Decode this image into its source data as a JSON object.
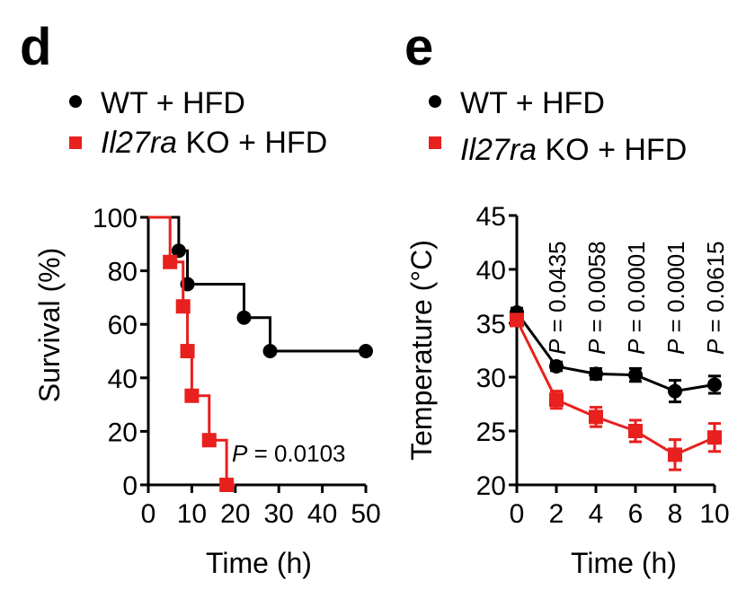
{
  "colors": {
    "wt": "#000000",
    "ko": "#e8201e"
  },
  "chart_data": [
    {
      "panel": "d",
      "type": "line",
      "subtype": "kaplan-meier",
      "legend": [
        {
          "series": "wt",
          "marker": "circle",
          "text": "WT + HFD"
        },
        {
          "series": "ko",
          "marker": "square",
          "italic": "Il27ra",
          "text": " KO + HFD"
        }
      ],
      "xlabel": "Time (h)",
      "ylabel": "Survival (%)",
      "xlim": [
        0,
        50
      ],
      "ylim": [
        0,
        100
      ],
      "xticks": [
        "0",
        "10",
        "20",
        "30",
        "40",
        "50"
      ],
      "yticks": [
        "0",
        "20",
        "40",
        "60",
        "80",
        "100"
      ],
      "annotation": {
        "italic": "P",
        "text": " = 0.0103"
      },
      "series": [
        {
          "name": "WT + HFD",
          "key": "wt",
          "steps": [
            [
              0,
              100
            ],
            [
              7,
              100
            ],
            [
              7,
              87.5
            ],
            [
              9,
              87.5
            ],
            [
              9,
              75
            ],
            [
              22,
              75
            ],
            [
              22,
              62.5
            ],
            [
              28,
              62.5
            ],
            [
              28,
              50
            ],
            [
              50,
              50
            ]
          ],
          "markers": [
            [
              7,
              87.5
            ],
            [
              9,
              75
            ],
            [
              22,
              62.5
            ],
            [
              28,
              50
            ],
            [
              50,
              50
            ]
          ]
        },
        {
          "name": "Il27ra KO + HFD",
          "key": "ko",
          "steps": [
            [
              0,
              100
            ],
            [
              5,
              100
            ],
            [
              5,
              83.3
            ],
            [
              8,
              83.3
            ],
            [
              8,
              66.7
            ],
            [
              9,
              66.7
            ],
            [
              9,
              50
            ],
            [
              10,
              50
            ],
            [
              10,
              33.3
            ],
            [
              14,
              33.3
            ],
            [
              14,
              16.7
            ],
            [
              18,
              16.7
            ],
            [
              18,
              0
            ],
            [
              20,
              0
            ]
          ],
          "markers": [
            [
              5,
              83.3
            ],
            [
              8,
              66.7
            ],
            [
              9,
              50
            ],
            [
              10,
              33.3
            ],
            [
              14,
              16.7
            ],
            [
              18,
              0
            ]
          ]
        }
      ]
    },
    {
      "panel": "e",
      "type": "line",
      "legend": [
        {
          "series": "wt",
          "marker": "circle",
          "text": "WT + HFD"
        },
        {
          "series": "ko",
          "marker": "square",
          "italic": "Il27ra",
          "text": " KO + HFD"
        }
      ],
      "xlabel": "Time (h)",
      "ylabel": "Temperature (°C)",
      "xlim": [
        0,
        10
      ],
      "ylim": [
        20,
        45
      ],
      "xticks": [
        "0",
        "2",
        "4",
        "6",
        "8",
        "10"
      ],
      "yticks": [
        "20",
        "25",
        "30",
        "35",
        "40",
        "45"
      ],
      "pvalues": [
        {
          "x": 2,
          "label": "P = 0.0435"
        },
        {
          "x": 4,
          "label": "P = 0.0058"
        },
        {
          "x": 6,
          "label": "P = 0.0001"
        },
        {
          "x": 8,
          "label": "P = 0.0001"
        },
        {
          "x": 10,
          "label": "P = 0.0615"
        }
      ],
      "series": [
        {
          "name": "WT + HFD",
          "key": "wt",
          "x": [
            0,
            2,
            4,
            6,
            8,
            10
          ],
          "y": [
            36.0,
            31.0,
            30.3,
            30.2,
            28.7,
            29.3
          ],
          "err": [
            0.4,
            0.4,
            0.5,
            0.6,
            1.0,
            0.8
          ]
        },
        {
          "name": "Il27ra KO + HFD",
          "key": "ko",
          "x": [
            0,
            2,
            4,
            6,
            8,
            10
          ],
          "y": [
            35.3,
            27.9,
            26.3,
            25.0,
            22.8,
            24.4
          ],
          "err": [
            0.5,
            0.8,
            0.9,
            1.0,
            1.4,
            1.3
          ]
        }
      ]
    }
  ]
}
